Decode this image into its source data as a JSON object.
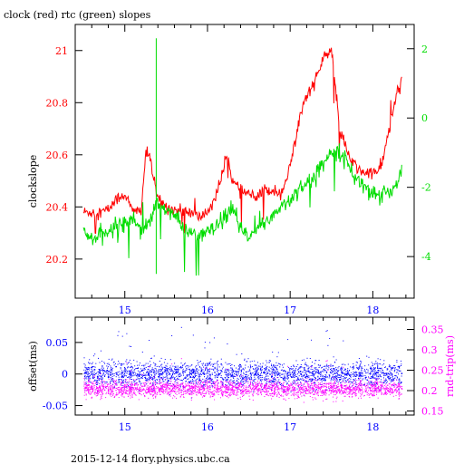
{
  "title": "clock (red) rtc (green) slopes",
  "footer": "2015-12-14 flory.physics.ubc.ca",
  "colors": {
    "red": "#ff0000",
    "green": "#00dd00",
    "blue": "#0000ff",
    "magenta": "#ff00ff",
    "axis": "#000000"
  },
  "chart_data": [
    {
      "type": "line",
      "panel": "top",
      "ylabel": "clockslope",
      "xlim": [
        14.4,
        18.5
      ],
      "ylim": [
        20.05,
        21.1
      ],
      "y2lim": [
        -5.2,
        2.7
      ],
      "x_ticks": [
        "15",
        "16",
        "17",
        "18"
      ],
      "y_ticks": [
        "20.2",
        "20.4",
        "20.6",
        "20.8",
        "21"
      ],
      "y2_ticks": [
        "-4",
        "-2",
        "0",
        "2"
      ],
      "grid": false,
      "series": [
        {
          "name": "clock",
          "color": "#ff0000",
          "axis": "left",
          "x": [
            14.5,
            14.6,
            14.7,
            14.8,
            14.9,
            15.0,
            15.1,
            15.2,
            15.25,
            15.3,
            15.35,
            15.4,
            15.5,
            15.6,
            15.7,
            15.8,
            15.9,
            16.0,
            16.1,
            16.2,
            16.25,
            16.3,
            16.4,
            16.5,
            16.6,
            16.7,
            16.8,
            16.9,
            17.0,
            17.1,
            17.2,
            17.3,
            17.4,
            17.5,
            17.6,
            17.7,
            17.8,
            17.9,
            18.0,
            18.1,
            18.2,
            18.3,
            18.35
          ],
          "values": [
            20.38,
            20.38,
            20.38,
            20.39,
            20.43,
            20.45,
            20.38,
            20.39,
            20.6,
            20.6,
            20.5,
            20.43,
            20.4,
            20.39,
            20.38,
            20.38,
            20.36,
            20.38,
            20.44,
            20.55,
            20.6,
            20.5,
            20.46,
            20.45,
            20.43,
            20.47,
            20.46,
            20.46,
            20.55,
            20.73,
            20.83,
            20.88,
            20.97,
            21.0,
            20.7,
            20.6,
            20.55,
            20.53,
            20.53,
            20.55,
            20.7,
            20.85,
            20.88
          ]
        },
        {
          "name": "rtc",
          "color": "#00dd00",
          "axis": "right",
          "x": [
            14.5,
            14.6,
            14.7,
            14.8,
            14.9,
            15.0,
            15.1,
            15.2,
            15.3,
            15.38,
            15.5,
            15.6,
            15.7,
            15.8,
            15.9,
            16.0,
            16.1,
            16.2,
            16.3,
            16.4,
            16.5,
            16.6,
            16.7,
            16.8,
            16.9,
            17.0,
            17.1,
            17.2,
            17.3,
            17.4,
            17.5,
            17.6,
            17.7,
            17.8,
            17.9,
            18.0,
            18.1,
            18.2,
            18.3,
            18.35
          ],
          "values": [
            -3.3,
            -3.5,
            -3.4,
            -3.3,
            -3.1,
            -3.0,
            -2.9,
            -3.2,
            -3.0,
            -2.5,
            -2.6,
            -2.8,
            -3.2,
            -3.3,
            -3.4,
            -3.3,
            -3.2,
            -2.9,
            -2.6,
            -3.2,
            -3.5,
            -3.2,
            -3.0,
            -2.8,
            -2.5,
            -2.4,
            -2.0,
            -1.9,
            -1.7,
            -1.3,
            -0.9,
            -1.0,
            -1.3,
            -1.8,
            -1.9,
            -2.2,
            -2.3,
            -2.1,
            -1.9,
            -1.4
          ]
        }
      ]
    },
    {
      "type": "scatter",
      "panel": "bottom",
      "ylabel": "offset(ms)",
      "y2label": "rnd-trip(ms)",
      "xlim": [
        14.4,
        18.5
      ],
      "ylim": [
        -0.065,
        0.09
      ],
      "y2lim": [
        0.14,
        0.38
      ],
      "x_ticks": [
        "15",
        "16",
        "17",
        "18"
      ],
      "y_ticks": [
        "-0.05",
        "0",
        "0.05"
      ],
      "y2_ticks": [
        "0.15",
        "0.2",
        "0.25",
        "0.3",
        "0.35"
      ],
      "grid": false,
      "series": [
        {
          "name": "offset",
          "color": "#0000ff",
          "axis": "left",
          "x": [
            14.5,
            18.35
          ],
          "center": 0.0,
          "spread": 0.018
        },
        {
          "name": "rnd-trip",
          "color": "#ff00ff",
          "axis": "right",
          "x": [
            14.5,
            18.35
          ],
          "center": 0.205,
          "spread": 0.018
        }
      ]
    }
  ]
}
